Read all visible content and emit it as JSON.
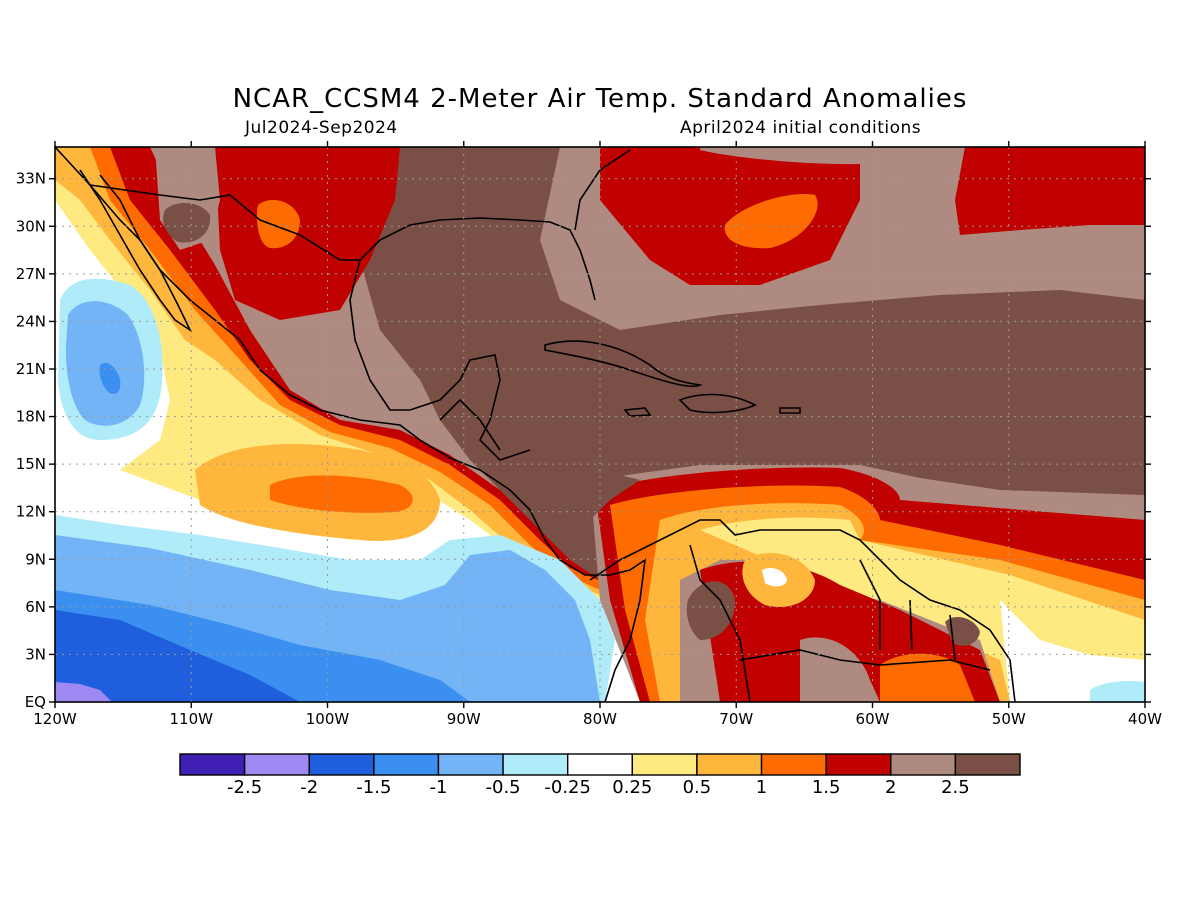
{
  "title": "NCAR_CCSM4 2-Meter Air Temp. Standard Anomalies",
  "period": "Jul2024-Sep2024",
  "init": "April2024 initial conditions",
  "map": {
    "lon_range": [
      -120,
      -40
    ],
    "lat_range": [
      0,
      35
    ],
    "lat_ticks": [
      {
        "v": 33,
        "label": "33N"
      },
      {
        "v": 30,
        "label": "30N"
      },
      {
        "v": 27,
        "label": "27N"
      },
      {
        "v": 24,
        "label": "24N"
      },
      {
        "v": 21,
        "label": "21N"
      },
      {
        "v": 18,
        "label": "18N"
      },
      {
        "v": 15,
        "label": "15N"
      },
      {
        "v": 12,
        "label": "12N"
      },
      {
        "v": 9,
        "label": "9N"
      },
      {
        "v": 6,
        "label": "6N"
      },
      {
        "v": 3,
        "label": "3N"
      },
      {
        "v": 0,
        "label": "EQ"
      }
    ],
    "lon_ticks": [
      {
        "v": -120,
        "label": "120W"
      },
      {
        "v": -110,
        "label": "110W"
      },
      {
        "v": -100,
        "label": "100W"
      },
      {
        "v": -90,
        "label": "90W"
      },
      {
        "v": -80,
        "label": "80W"
      },
      {
        "v": -70,
        "label": "70W"
      },
      {
        "v": -60,
        "label": "60W"
      },
      {
        "v": -50,
        "label": "50W"
      },
      {
        "v": -40,
        "label": "40W"
      }
    ]
  },
  "colorbar": {
    "colors": [
      "#3f1fb4",
      "#9e88f2",
      "#1f5fdd",
      "#3a8ff0",
      "#72b4f5",
      "#b0ebf9",
      "#ffffff",
      "#feea80",
      "#feb73c",
      "#fe6b00",
      "#c10000",
      "#ae8a80",
      "#7a5046"
    ],
    "labels": [
      "-2.5",
      "-2",
      "-1.5",
      "-1",
      "-0.5",
      "-0.25",
      "0.25",
      "0.5",
      "1",
      "1.5",
      "2",
      "2.5"
    ]
  },
  "colors": {
    "brown": "#7a5046",
    "taupe": "#ae8a80",
    "red": "#c10000",
    "orange": "#fe6b00",
    "lightorange": "#feb73c",
    "yellow": "#feea80",
    "white": "#ffffff",
    "paleblue": "#b0ebf9",
    "lightblue": "#72b4f5",
    "midblue": "#3a8ff0",
    "blue": "#1f5fdd",
    "lavender": "#9e88f2",
    "grid": "#9a9a9a"
  }
}
